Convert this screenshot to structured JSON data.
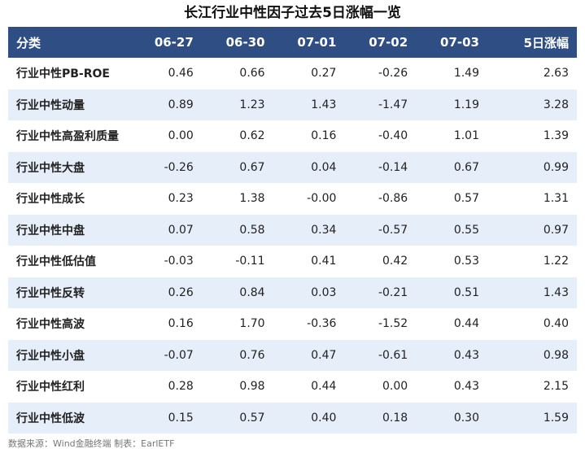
{
  "title": "长江行业中性因子过去5日涨幅一览",
  "columns": [
    "分类",
    "06-27",
    "06-30",
    "07-01",
    "07-02",
    "07-03",
    "5日涨幅"
  ],
  "rows": [
    [
      "行业中性PB-ROE",
      "0.46",
      "0.66",
      "0.27",
      "-0.26",
      "1.49",
      "2.63"
    ],
    [
      "行业中性动量",
      "0.89",
      "1.23",
      "1.43",
      "-1.47",
      "1.19",
      "3.28"
    ],
    [
      "行业中性高盈利质量",
      "0.00",
      "0.62",
      "0.16",
      "-0.40",
      "1.01",
      "1.39"
    ],
    [
      "行业中性大盘",
      "-0.26",
      "0.67",
      "0.04",
      "-0.14",
      "0.67",
      "0.99"
    ],
    [
      "行业中性成长",
      "0.23",
      "1.38",
      "-0.00",
      "-0.86",
      "0.57",
      "1.31"
    ],
    [
      "行业中性中盘",
      "0.07",
      "0.58",
      "0.34",
      "-0.57",
      "0.55",
      "0.97"
    ],
    [
      "行业中性低估值",
      "-0.03",
      "-0.11",
      "0.41",
      "0.42",
      "0.53",
      "1.22"
    ],
    [
      "行业中性反转",
      "0.26",
      "0.84",
      "0.03",
      "-0.21",
      "0.51",
      "1.43"
    ],
    [
      "行业中性高波",
      "0.16",
      "1.70",
      "-0.36",
      "-1.52",
      "0.44",
      "0.40"
    ],
    [
      "行业中性小盘",
      "-0.07",
      "0.76",
      "0.47",
      "-0.61",
      "0.43",
      "0.98"
    ],
    [
      "行业中性红利",
      "0.28",
      "0.98",
      "0.44",
      "0.00",
      "0.43",
      "2.15"
    ],
    [
      "行业中性低波",
      "0.15",
      "0.57",
      "0.40",
      "0.18",
      "0.30",
      "1.59"
    ]
  ],
  "source": "数据来源：Wind金融终端 制表：EarlETF",
  "colors": {
    "header_bg": "#2f4e84",
    "alt_row_bg": "#e6eefa"
  },
  "chart_data": {
    "type": "table",
    "title": "长江行业中性因子过去5日涨幅一览",
    "columns": [
      "分类",
      "06-27",
      "06-30",
      "07-01",
      "07-02",
      "07-03",
      "5日涨幅"
    ],
    "categories": [
      "行业中性PB-ROE",
      "行业中性动量",
      "行业中性高盈利质量",
      "行业中性大盘",
      "行业中性成长",
      "行业中性中盘",
      "行业中性低估值",
      "行业中性反转",
      "行业中性高波",
      "行业中性小盘",
      "行业中性红利",
      "行业中性低波"
    ]
  }
}
